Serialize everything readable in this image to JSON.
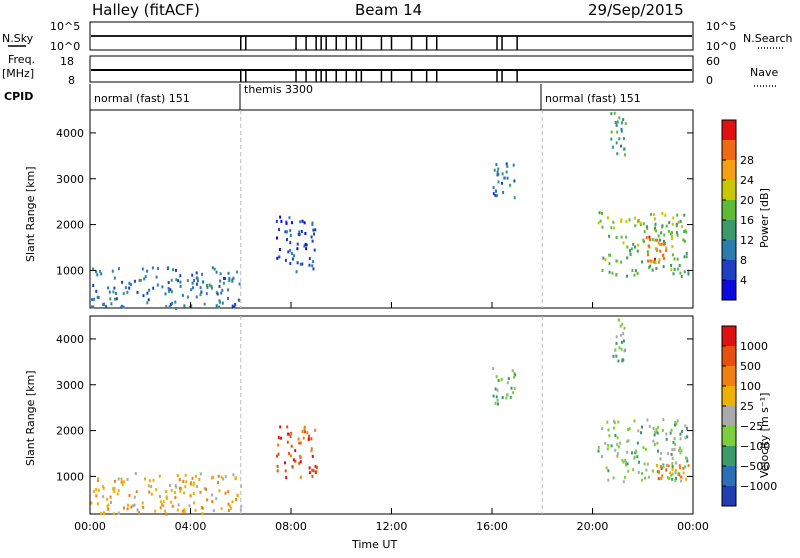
{
  "header": {
    "station": "Halley (fitACF)",
    "beam": "Beam 14",
    "date": "29/Sep/2015"
  },
  "labels": {
    "nsky": "N.Sky",
    "nsearch": "N.Search",
    "freq": "Freq.",
    "freq_unit": "[MHz]",
    "nave": "Nave",
    "cpid": "CPID",
    "nsky_tick_top": "10^5",
    "nsky_tick_bot": "10^0",
    "freq_tick_top": "18",
    "freq_tick_bot": "8",
    "nave_tick_top": "60",
    "nave_tick_bot": "0"
  },
  "cpid_segments": [
    {
      "label": "normal (fast) 151",
      "start_hour": 0
    },
    {
      "label": "themis 3300",
      "start_hour": 6
    },
    {
      "label": "normal (fast) 151",
      "start_hour": 18
    }
  ],
  "search_marks_hours": [
    6.0,
    6.2,
    8.2,
    8.6,
    9.0,
    9.2,
    9.4,
    9.8,
    10.2,
    10.6,
    10.8,
    11.6,
    12.0,
    12.8,
    13.4,
    13.8,
    16.2,
    16.4,
    17.0
  ],
  "colors": {
    "power_scale": [
      "#0a0adf",
      "#1f40c0",
      "#2b7db0",
      "#3a9a6a",
      "#5fbb35",
      "#c8c800",
      "#f5a010",
      "#ef6a10",
      "#e11010"
    ],
    "velocity_scale": [
      "#1f3fae",
      "#2b6fb5",
      "#3a9a6a",
      "#7ccf3c",
      "#aaaaaa",
      "#f0b000",
      "#f08010",
      "#e85010",
      "#e01010"
    ]
  },
  "chart_data": [
    {
      "type": "heatmap",
      "name": "power",
      "xlabel": "",
      "ylabel": "Slant Range [km]",
      "xlim": [
        0,
        24
      ],
      "ylim": [
        180,
        4500
      ],
      "x_ticks": [
        "00:00",
        "04:00",
        "08:00",
        "12:00",
        "16:00",
        "20:00",
        "00:00"
      ],
      "y_ticks": [
        1000,
        2000,
        3000,
        4000
      ],
      "colorbar_label": "Power [dB]",
      "colorbar_ticks": [
        "4",
        "8",
        "12",
        "16",
        "20",
        "24",
        "28"
      ],
      "clusters": [
        {
          "hour_start": 7.4,
          "hour_end": 9.0,
          "range_start": 1000,
          "range_end": 2200,
          "level": 1
        },
        {
          "hour_start": 16.0,
          "hour_end": 16.9,
          "range_start": 2600,
          "range_end": 3400,
          "level": 2
        },
        {
          "hour_start": 20.2,
          "hour_end": 23.8,
          "range_start": 900,
          "range_end": 2300,
          "level": 4
        },
        {
          "hour_start": 22.1,
          "hour_end": 22.9,
          "range_start": 1200,
          "range_end": 1800,
          "level": 7
        },
        {
          "hour_start": 20.7,
          "hour_end": 21.3,
          "range_start": 3500,
          "range_end": 4500,
          "level": 3
        },
        {
          "hour_start": 0.0,
          "hour_end": 6.0,
          "range_start": 200,
          "range_end": 1100,
          "level": 2
        }
      ]
    },
    {
      "type": "heatmap",
      "name": "velocity",
      "xlabel": "Time UT",
      "ylabel": "Slant Range [km]",
      "xlim": [
        0,
        24
      ],
      "ylim": [
        180,
        4500
      ],
      "x_ticks": [
        "00:00",
        "04:00",
        "08:00",
        "12:00",
        "16:00",
        "20:00",
        "00:00"
      ],
      "y_ticks": [
        1000,
        2000,
        3000,
        4000
      ],
      "colorbar_label": "Velocity [m s⁻¹]",
      "colorbar_ticks": [
        "1000",
        "500",
        "100",
        "25",
        "−25",
        "−100",
        "−500",
        "−1000"
      ],
      "clusters": [
        {
          "hour_start": 7.4,
          "hour_end": 9.0,
          "range_start": 1000,
          "range_end": 2200,
          "level": 7
        },
        {
          "hour_start": 16.0,
          "hour_end": 16.9,
          "range_start": 2600,
          "range_end": 3400,
          "level": 3
        },
        {
          "hour_start": 20.2,
          "hour_end": 23.8,
          "range_start": 900,
          "range_end": 2300,
          "level": 3
        },
        {
          "hour_start": 22.5,
          "hour_end": 23.8,
          "range_start": 900,
          "range_end": 1300,
          "level": 6
        },
        {
          "hour_start": 20.7,
          "hour_end": 21.3,
          "range_start": 3500,
          "range_end": 4500,
          "level": 3
        },
        {
          "hour_start": 0.0,
          "hour_end": 6.0,
          "range_start": 200,
          "range_end": 1100,
          "level": 5
        }
      ]
    }
  ]
}
